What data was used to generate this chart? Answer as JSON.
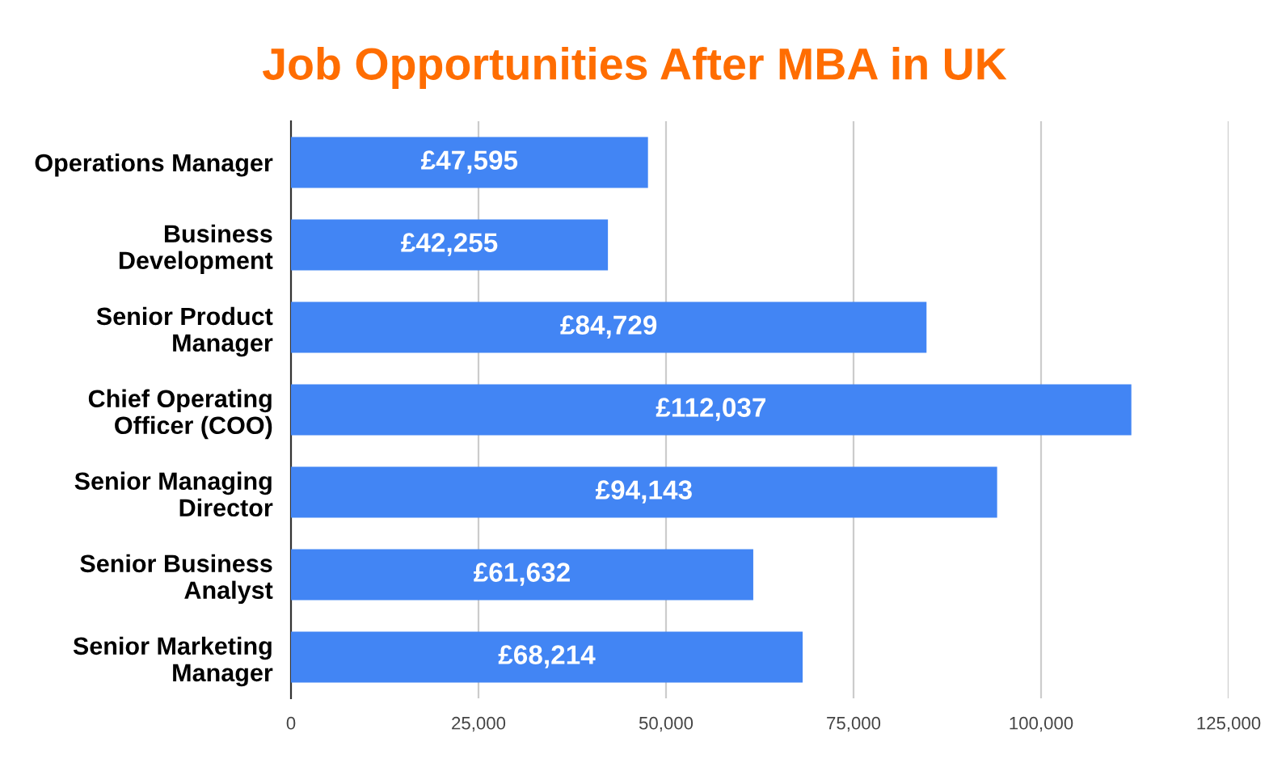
{
  "chart_data": {
    "type": "bar",
    "orientation": "horizontal",
    "title": "Job Opportunities After MBA in UK",
    "categories": [
      "Operations Manager",
      "Business\nDevelopment",
      "Senior Product\nManager",
      "Chief Operating\nOfficer (COO)",
      "Senior Managing\nDirector",
      "Senior Business\nAnalyst",
      "Senior Marketing\nManager"
    ],
    "values": [
      47595,
      42255,
      84729,
      112037,
      94143,
      61632,
      68214
    ],
    "value_labels": [
      "£47,595",
      "£42,255",
      "£84,729",
      "£112,037",
      "£94,143",
      "£61,632",
      "£68,214"
    ],
    "color": "#4285f4",
    "xlim": [
      0,
      125000
    ],
    "xticks": [
      0,
      {
        "value": 25000,
        "label": "25,000"
      },
      {
        "value": 50000,
        "label": "50,000"
      },
      {
        "value": 75000,
        "label": "75,000"
      },
      {
        "value": 100000,
        "label": "100,000"
      },
      {
        "value": 125000,
        "label": "125,000"
      }
    ],
    "grid": "x",
    "legend": false
  }
}
